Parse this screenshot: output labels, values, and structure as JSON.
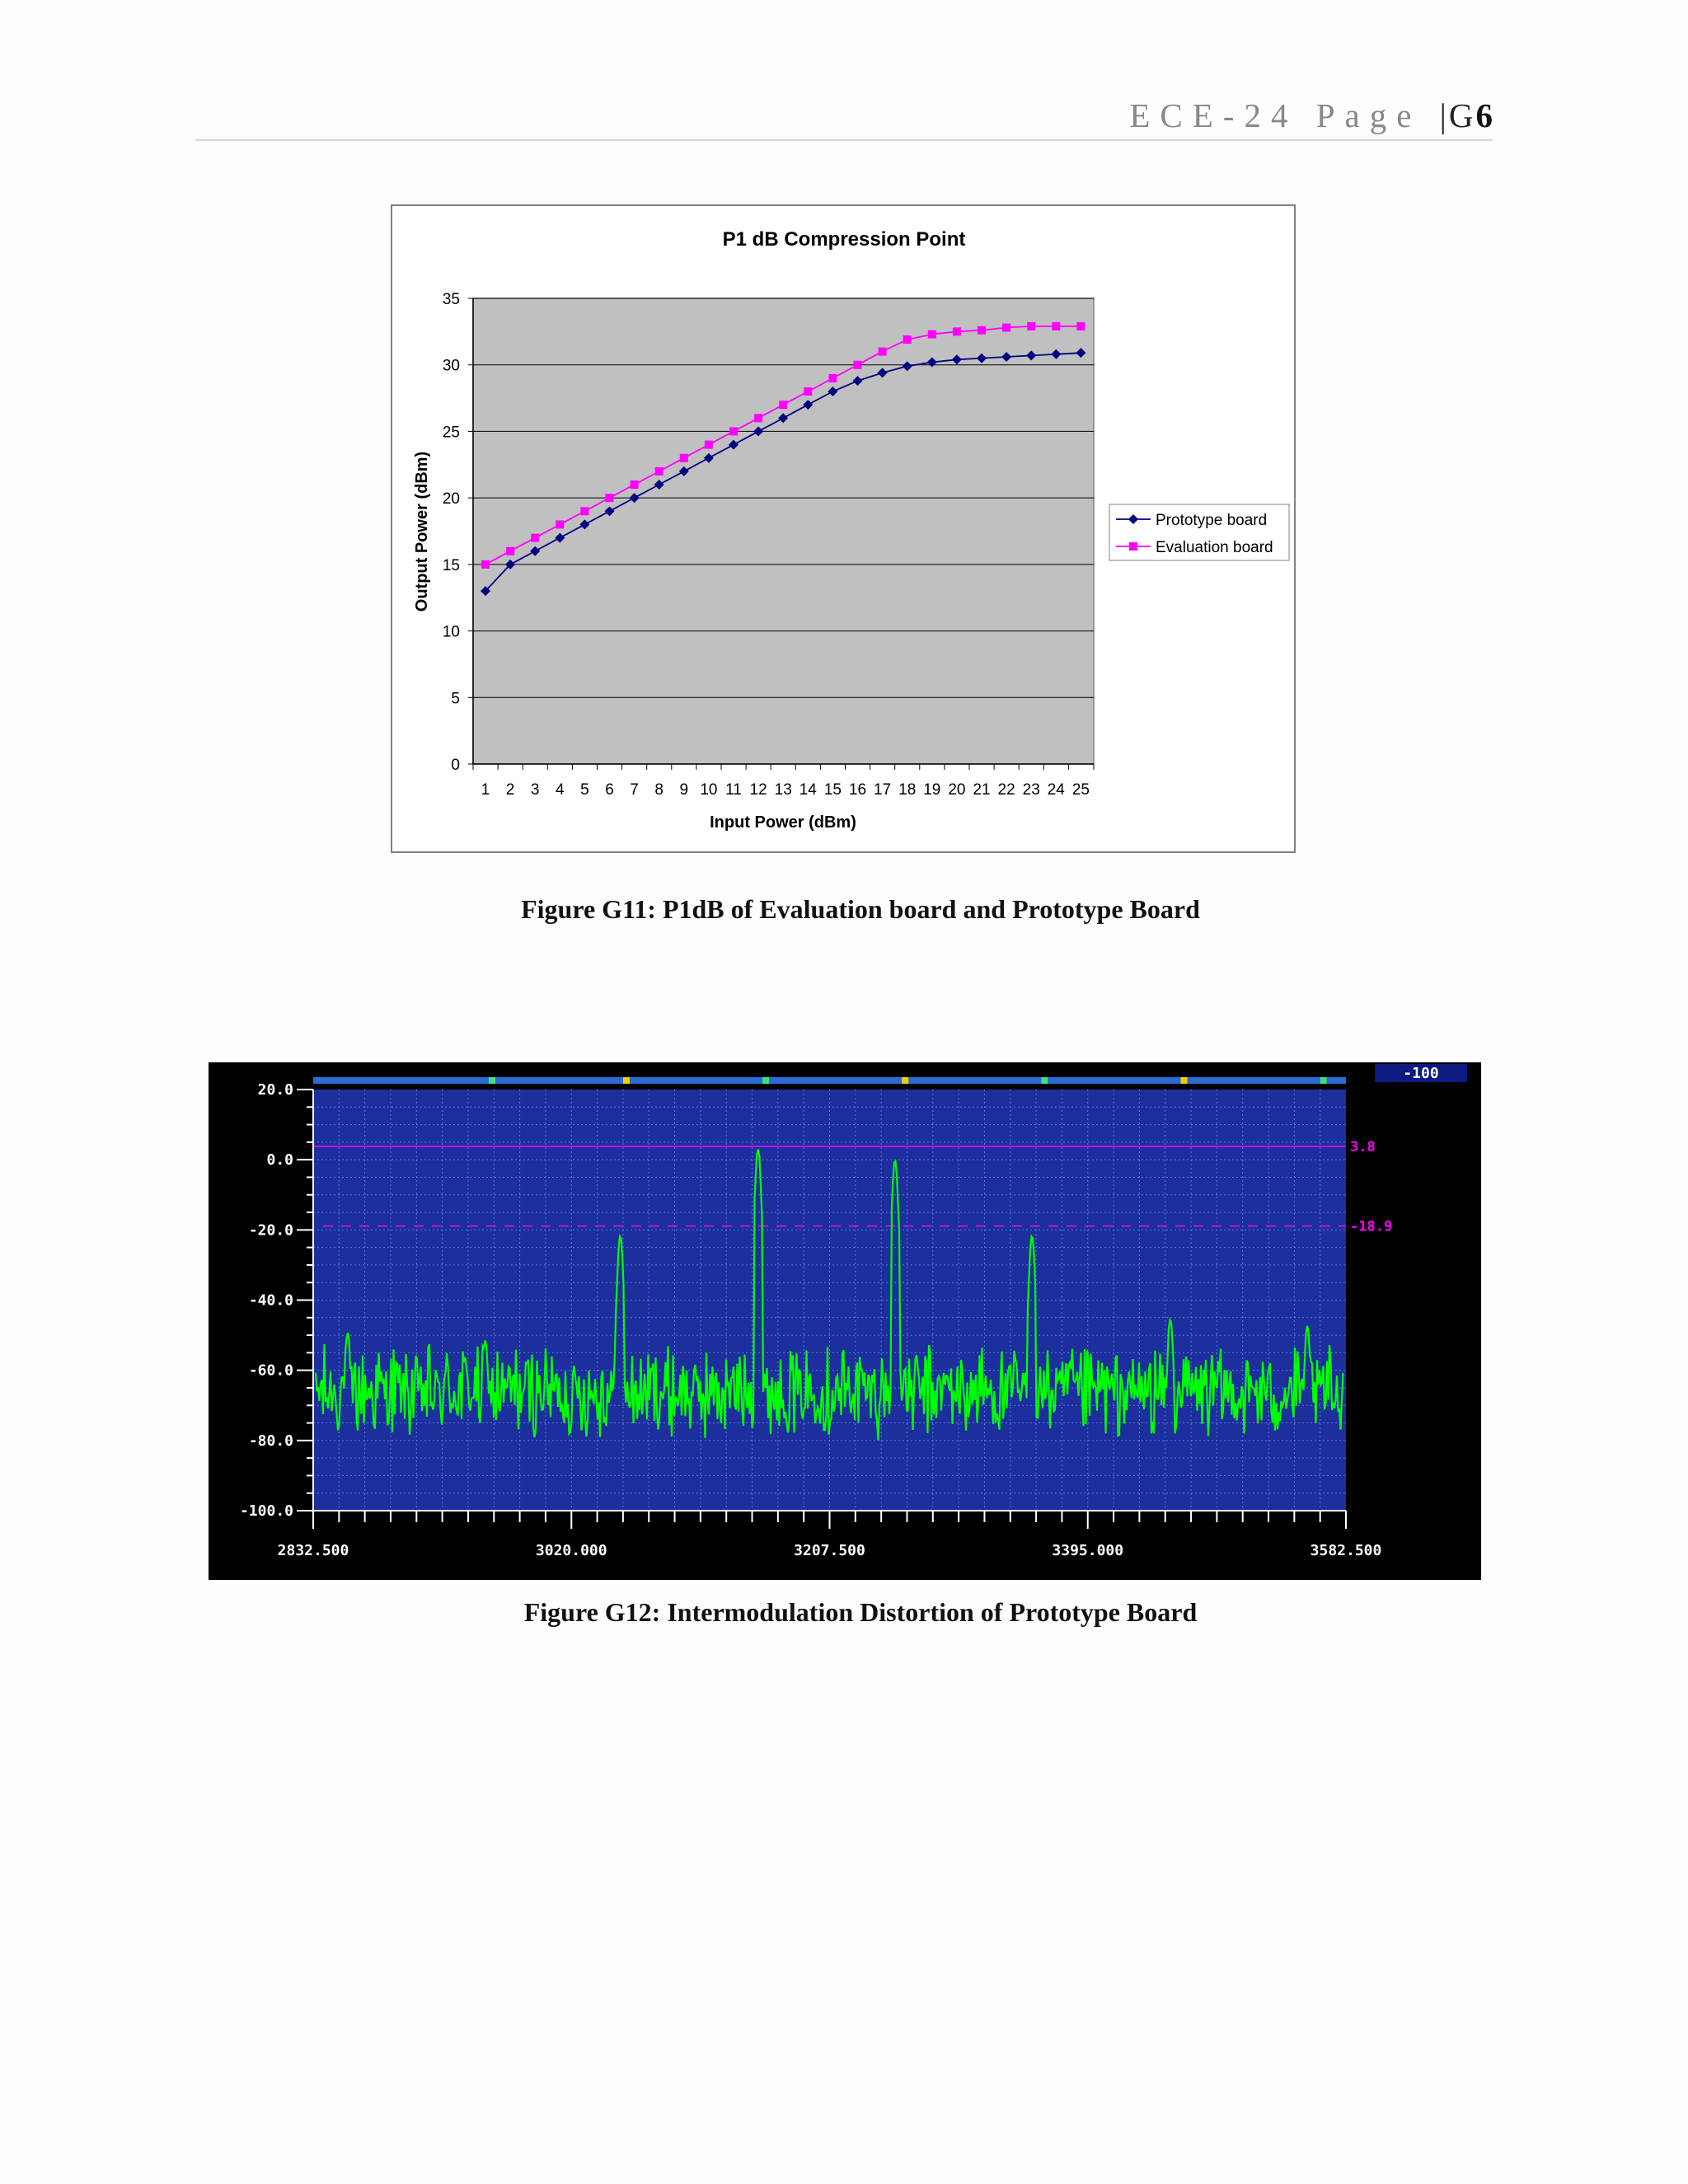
{
  "header": {
    "running_head": "ECE-24 Page",
    "section": "G",
    "page_number": "6"
  },
  "figures": [
    {
      "caption": "Figure G11:  P1dB of Evaluation board and Prototype Board"
    },
    {
      "caption": "Figure G12:  Intermodulation Distortion of Prototype Board"
    }
  ],
  "chart_data": [
    {
      "type": "line",
      "title": "P1 dB Compression Point",
      "xlabel": "Input Power (dBm)",
      "ylabel": "Output Power (dBm)",
      "x": [
        1,
        2,
        3,
        4,
        5,
        6,
        7,
        8,
        9,
        10,
        11,
        12,
        13,
        14,
        15,
        16,
        17,
        18,
        19,
        20,
        21,
        22,
        23,
        24,
        25
      ],
      "ylim": [
        0,
        35
      ],
      "yticks": [
        0,
        5,
        10,
        15,
        20,
        25,
        30,
        35
      ],
      "grid": true,
      "legend_position": "right",
      "colors": {
        "plot_bg": "#c0c0c0",
        "prototype": "#000080",
        "evaluation": "#ff00ff"
      },
      "series": [
        {
          "name": "Prototype board",
          "marker": "diamond",
          "values": [
            13,
            15,
            16,
            17,
            18,
            19,
            20,
            21,
            22,
            23,
            24,
            25,
            26,
            27,
            28,
            28.8,
            29.4,
            29.9,
            30.2,
            30.4,
            30.5,
            30.6,
            30.7,
            30.8,
            30.9
          ]
        },
        {
          "name": "Evaluation board",
          "marker": "square",
          "values": [
            15,
            16,
            17,
            18,
            19,
            20,
            21,
            22,
            23,
            24,
            25,
            26,
            27,
            28,
            29,
            30,
            31,
            31.9,
            32.3,
            32.5,
            32.6,
            32.8,
            32.9,
            32.9,
            32.9
          ]
        }
      ]
    },
    {
      "type": "line",
      "title": "",
      "xlim": [
        2832.5,
        3582.5
      ],
      "xtick_labels": [
        "2832.500",
        "3020.000",
        "3207.500",
        "3395.000",
        "3582.500"
      ],
      "ylim": [
        -100,
        20
      ],
      "ytick_labels": [
        "20.0",
        "0.0",
        "-20.0",
        "-40.0",
        "-60.0",
        "-80.0",
        "-100.0"
      ],
      "grid": true,
      "colors": {
        "background": "#000000",
        "plot_bg": "#1c2f9c",
        "trace": "#00ff00",
        "marker_line": "#ff00ff",
        "readout": "#ffffff"
      },
      "top_readout": "-100",
      "reference_lines": [
        {
          "value": 3.8,
          "label": "3.8",
          "style": "solid"
        },
        {
          "value": -18.9,
          "label": "-18.9",
          "style": "dashed"
        }
      ],
      "noise_floor": -66,
      "peaks": [
        {
          "x": 2857.5,
          "y": -49
        },
        {
          "x": 2957.5,
          "y": -51
        },
        {
          "x": 3055.5,
          "y": -21
        },
        {
          "x": 3155.5,
          "y": 3.5
        },
        {
          "x": 3255,
          "y": 0.5
        },
        {
          "x": 3354.5,
          "y": -21
        },
        {
          "x": 3455,
          "y": -45
        },
        {
          "x": 3554.5,
          "y": -47
        }
      ]
    }
  ]
}
